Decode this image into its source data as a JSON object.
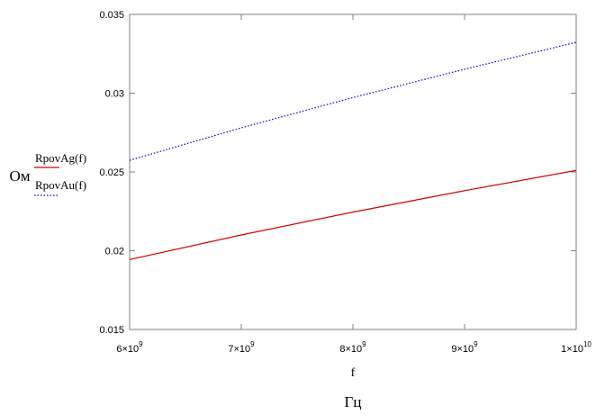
{
  "chart_data": {
    "type": "line",
    "x": [
      6000000000,
      7000000000,
      8000000000,
      9000000000,
      10000000000
    ],
    "series": [
      {
        "name": "RpovAg(f)",
        "values": [
          0.01944,
          0.021,
          0.02245,
          0.02381,
          0.0251
        ],
        "color": "#cc0000",
        "style": "solid"
      },
      {
        "name": "RpovAu(f)",
        "values": [
          0.02574,
          0.0278,
          0.02972,
          0.03152,
          0.03323
        ],
        "color": "#0000aa",
        "style": "dotted"
      }
    ],
    "xlim": [
      6000000000,
      10000000000
    ],
    "ylim": [
      0.015,
      0.035
    ],
    "x_tick_labels": [
      {
        "mantissa": "6×10",
        "exponent": "9"
      },
      {
        "mantissa": "7×10",
        "exponent": "9"
      },
      {
        "mantissa": "8×10",
        "exponent": "9"
      },
      {
        "mantissa": "9×10",
        "exponent": "9"
      },
      {
        "mantissa": "1×10",
        "exponent": "10"
      }
    ],
    "y_tick_labels": [
      "0.015",
      "0.02",
      "0.025",
      "0.03",
      "0.035"
    ],
    "xlabel_var": "f",
    "xlabel_unit": "Гц",
    "ylabel_unit": "Ом",
    "grid": false,
    "legend_position": "left"
  }
}
